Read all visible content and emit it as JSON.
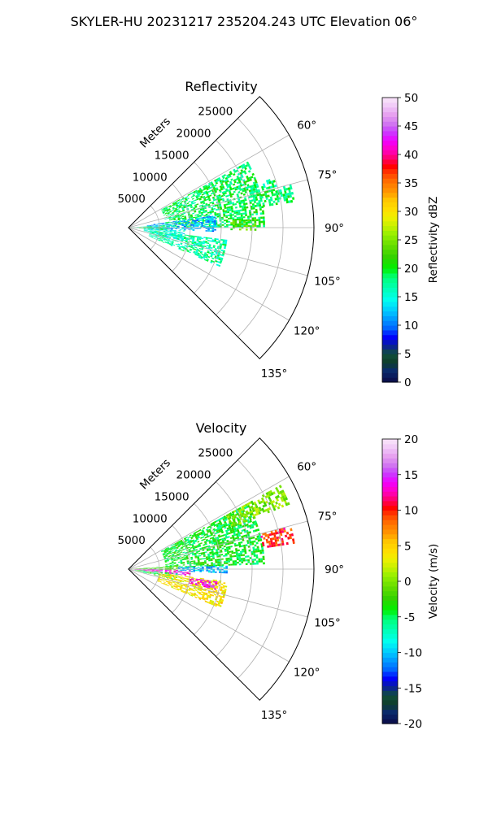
{
  "suptitle": "SKYLER-HU  20231217  235204.243 UTC Elevation 06°",
  "chart_data": [
    {
      "type": "heatmap",
      "title": "Reflectivity",
      "projection": "polar sector (PPI)",
      "range_label": "Meters",
      "range_ticks": [
        "5000",
        "10000",
        "15000",
        "20000",
        "25000"
      ],
      "range_tick_values": [
        5000,
        10000,
        15000,
        20000,
        25000
      ],
      "range_max": 30000,
      "azimuth_ticks": [
        "60°",
        "75°",
        "90°",
        "105°",
        "120°",
        "135°"
      ],
      "azimuth_tick_values": [
        60,
        75,
        90,
        105,
        120,
        135
      ],
      "azimuth_range": [
        45,
        135
      ],
      "grid": true,
      "colorbar": {
        "label": "Reflectivity dBZ",
        "ticks": [
          "0",
          "5",
          "10",
          "15",
          "20",
          "25",
          "30",
          "35",
          "40",
          "45",
          "50"
        ],
        "range": [
          0,
          50
        ]
      },
      "echo_regions": [
        {
          "az": [
            61,
            89
          ],
          "range_m": [
            6000,
            22000
          ],
          "value": 19
        },
        {
          "az": [
            82,
            92
          ],
          "range_m": [
            3000,
            14000
          ],
          "value": 12
        },
        {
          "az": [
            86,
            94
          ],
          "range_m": [
            0,
            6000
          ],
          "value": 18
        },
        {
          "az": [
            93,
            103
          ],
          "range_m": [
            2500,
            9000
          ],
          "value": 15
        },
        {
          "az": [
            97,
            113
          ],
          "range_m": [
            3500,
            16000
          ],
          "value": 17
        },
        {
          "az": [
            86,
            91
          ],
          "range_m": [
            16500,
            20500
          ],
          "value": 23
        },
        {
          "az": [
            75,
            81
          ],
          "range_m": [
            22000,
            27000
          ],
          "value": 19
        },
        {
          "az": [
            71,
            74
          ],
          "range_m": [
            20000,
            25000
          ],
          "value": 18
        }
      ]
    },
    {
      "type": "heatmap",
      "title": "Velocity",
      "projection": "polar sector (PPI)",
      "range_label": "Meters",
      "range_ticks": [
        "5000",
        "10000",
        "15000",
        "20000",
        "25000"
      ],
      "range_tick_values": [
        5000,
        10000,
        15000,
        20000,
        25000
      ],
      "range_max": 30000,
      "azimuth_ticks": [
        "60°",
        "75°",
        "90°",
        "105°",
        "120°",
        "135°"
      ],
      "azimuth_tick_values": [
        60,
        75,
        90,
        105,
        120,
        135
      ],
      "azimuth_range": [
        45,
        135
      ],
      "grid": true,
      "colorbar": {
        "label": "Velocity (m/s)",
        "ticks": [
          "-20",
          "-15",
          "-10",
          "-5",
          "0",
          "5",
          "10",
          "15",
          "20"
        ],
        "range": [
          -20,
          20
        ]
      },
      "echo_regions": [
        {
          "az": [
            61,
            88
          ],
          "range_m": [
            6000,
            22000
          ],
          "value": -4
        },
        {
          "az": [
            86,
            91
          ],
          "range_m": [
            0,
            8000
          ],
          "value": -2
        },
        {
          "az": [
            88,
            92
          ],
          "range_m": [
            8000,
            16000
          ],
          "value": -10
        },
        {
          "az": [
            91,
            96
          ],
          "range_m": [
            1000,
            10000
          ],
          "value": 14
        },
        {
          "az": [
            95,
            103
          ],
          "range_m": [
            1000,
            8000
          ],
          "value": -4
        },
        {
          "az": [
            97,
            113
          ],
          "range_m": [
            5000,
            16000
          ],
          "value": 4
        },
        {
          "az": [
            61,
            68
          ],
          "range_m": [
            18000,
            28000
          ],
          "value": 0
        },
        {
          "az": [
            75,
            81
          ],
          "range_m": [
            22000,
            27000
          ],
          "value": 10
        },
        {
          "az": [
            98,
            103
          ],
          "range_m": [
            10000,
            14500
          ],
          "value": 14
        }
      ]
    }
  ]
}
